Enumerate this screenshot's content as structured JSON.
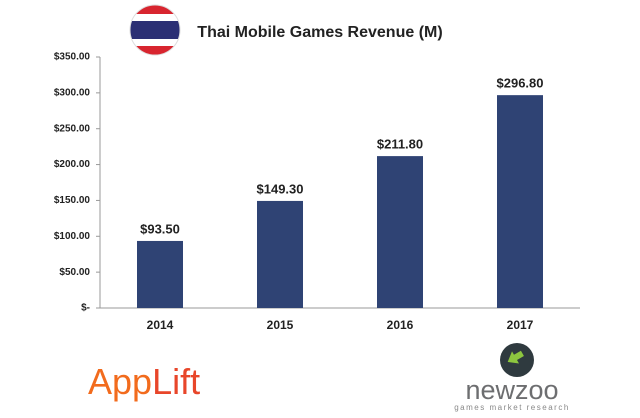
{
  "chart_data": {
    "type": "bar",
    "title": "Thai Mobile Games Revenue (M)",
    "categories": [
      "2014",
      "2015",
      "2016",
      "2017"
    ],
    "values": [
      93.5,
      149.3,
      211.8,
      296.8
    ],
    "value_labels": [
      "$93.50",
      "$149.30",
      "$211.80",
      "$296.80"
    ],
    "color": "#2f4374",
    "ylim": [
      0,
      350
    ],
    "yticks": [
      {
        "value": 0,
        "label": "$-"
      },
      {
        "value": 50,
        "label": "$50.00"
      },
      {
        "value": 100,
        "label": "$100.00"
      },
      {
        "value": 150,
        "label": "$150.00"
      },
      {
        "value": 200,
        "label": "$200.00"
      },
      {
        "value": 250,
        "label": "$250.00"
      },
      {
        "value": 300,
        "label": "$300.00"
      },
      {
        "value": 350,
        "label": "$350.00"
      }
    ],
    "grid": false
  },
  "logos": {
    "applift_app": "App",
    "applift_lift": "Lift",
    "newzoo": "newzoo",
    "newzoo_tagline": "games market research"
  }
}
